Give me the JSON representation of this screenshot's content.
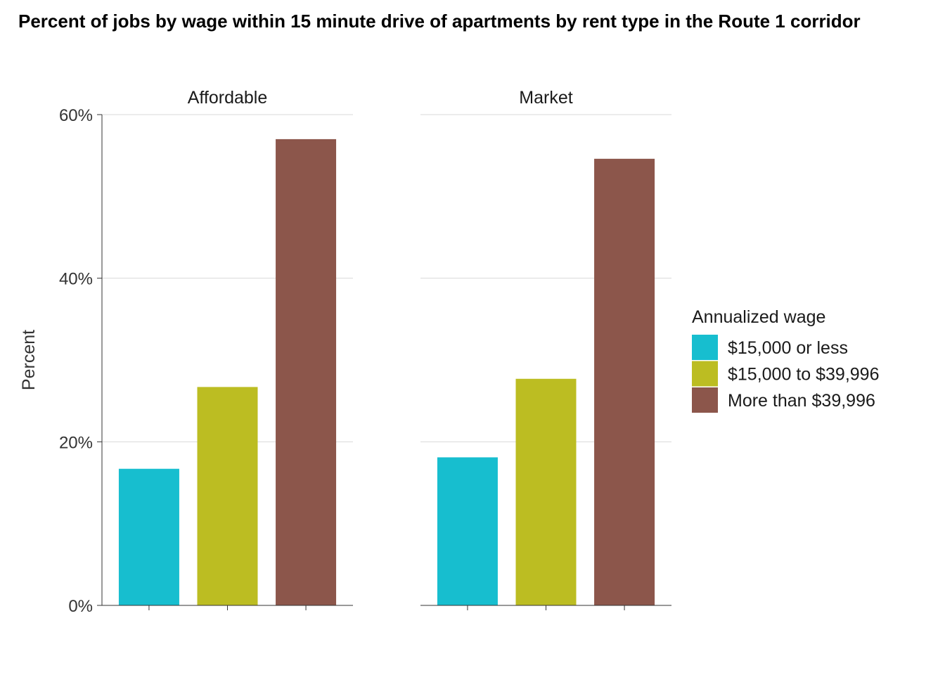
{
  "chart_data": {
    "type": "bar",
    "title": "Percent of jobs by wage within 15 minute drive of apartments by rent type in the Route 1 corridor",
    "ylabel": "Percent",
    "xlabel": "",
    "ylim": [
      0,
      60
    ],
    "y_ticks": [
      "0%",
      "20%",
      "40%",
      "60%"
    ],
    "y_tick_values": [
      0,
      20,
      40,
      60
    ],
    "grid": "horizontal major",
    "legend_position": "right",
    "legend_title": "Annualized wage",
    "categories": [
      "$15,000 or less",
      "$15,000 to $39,996",
      "More than $39,996"
    ],
    "colors": [
      "#17BECF",
      "#BCBD22",
      "#8C564B"
    ],
    "panels": [
      {
        "name": "Affordable",
        "values": [
          16.7,
          26.7,
          57.0
        ]
      },
      {
        "name": "Market",
        "values": [
          18.1,
          27.7,
          54.6
        ]
      }
    ]
  }
}
